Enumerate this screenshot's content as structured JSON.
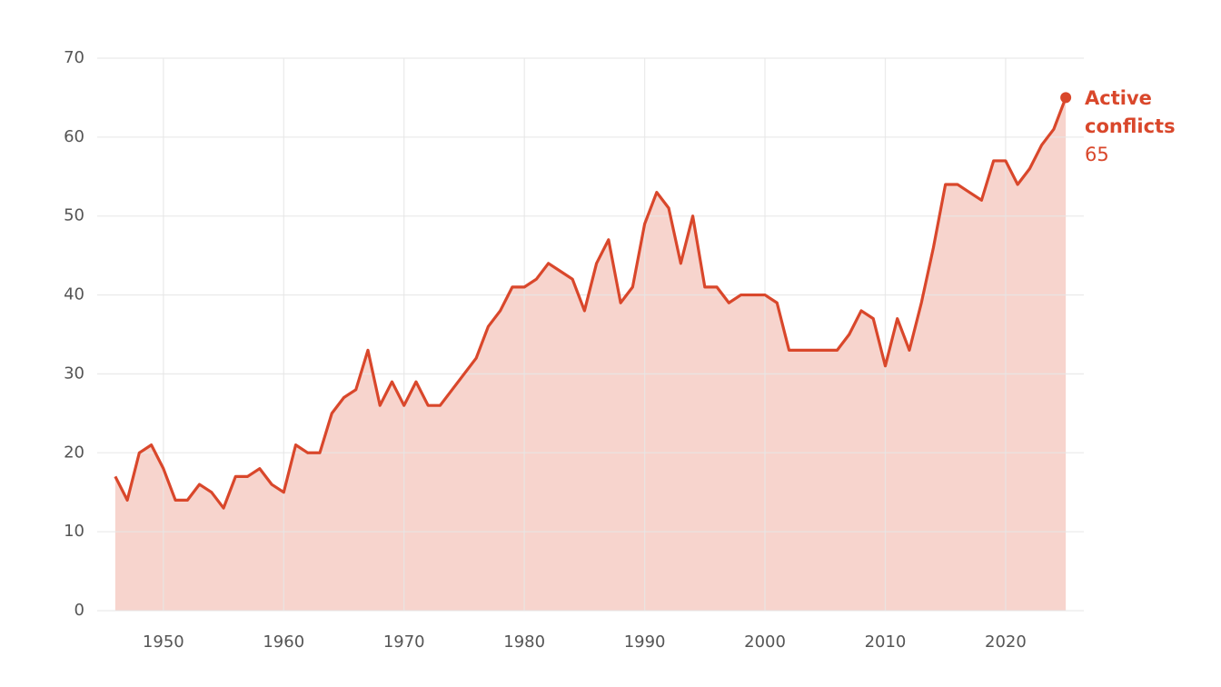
{
  "chart_data": {
    "type": "area",
    "x": [
      1946,
      1947,
      1948,
      1949,
      1950,
      1951,
      1952,
      1953,
      1954,
      1955,
      1956,
      1957,
      1958,
      1959,
      1960,
      1961,
      1962,
      1963,
      1964,
      1965,
      1966,
      1967,
      1968,
      1969,
      1970,
      1971,
      1972,
      1973,
      1974,
      1975,
      1976,
      1977,
      1978,
      1979,
      1980,
      1981,
      1982,
      1983,
      1984,
      1985,
      1986,
      1987,
      1988,
      1989,
      1990,
      1991,
      1992,
      1993,
      1994,
      1995,
      1996,
      1997,
      1998,
      1999,
      2000,
      2001,
      2002,
      2003,
      2004,
      2005,
      2006,
      2007,
      2008,
      2009,
      2010,
      2011,
      2012,
      2013,
      2014,
      2015,
      2016,
      2017,
      2018,
      2019,
      2020,
      2021,
      2022,
      2023,
      2024,
      2025
    ],
    "series": [
      {
        "name": "Active conflicts",
        "color": "#d9472b",
        "fill": "#f3c2b8",
        "values": [
          17,
          14,
          20,
          21,
          18,
          14,
          14,
          16,
          15,
          13,
          17,
          17,
          18,
          16,
          15,
          21,
          20,
          20,
          25,
          27,
          28,
          33,
          26,
          29,
          26,
          29,
          26,
          26,
          28,
          30,
          32,
          36,
          38,
          41,
          41,
          42,
          44,
          43,
          42,
          38,
          44,
          47,
          39,
          41,
          49,
          53,
          51,
          44,
          50,
          41,
          41,
          39,
          40,
          40,
          40,
          39,
          33,
          33,
          33,
          33,
          33,
          35,
          38,
          37,
          31,
          37,
          33,
          39,
          46,
          54,
          54,
          53,
          52,
          57,
          57,
          54,
          56,
          59,
          61,
          65
        ]
      }
    ],
    "xlim": [
      1944.5,
      2026.5
    ],
    "xticks": [
      1950,
      1960,
      1970,
      1980,
      1990,
      2000,
      2010,
      2020
    ],
    "ylim": [
      0,
      70
    ],
    "yticks": [
      0,
      10,
      20,
      30,
      40,
      50,
      60,
      70
    ],
    "grid": true
  }
}
